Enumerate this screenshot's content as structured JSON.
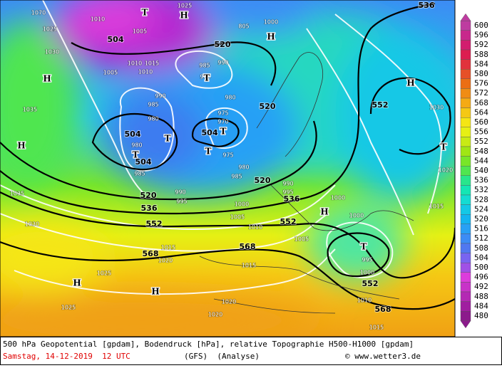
{
  "map": {
    "geopotential_labels": [
      "504",
      "520",
      "504",
      "504",
      "504",
      "520",
      "552",
      "520",
      "536",
      "552",
      "520",
      "536",
      "552",
      "568",
      "568",
      "552",
      "568",
      "536"
    ],
    "pressure_labels": [
      "1070",
      "1010",
      "1025",
      "1005",
      "1025",
      "1030",
      "805",
      "1000",
      "1010",
      "1015",
      "1005",
      "1010",
      "985",
      "990",
      "985",
      "990",
      "985",
      "980",
      "980",
      "975",
      "970",
      "975",
      "1035",
      "980",
      "985",
      "980",
      "985",
      "990",
      "995",
      "1000",
      "1005",
      "1010",
      "990",
      "995",
      "1030",
      "1020",
      "1015",
      "1000",
      "1000",
      "1035",
      "1030",
      "1015",
      "1020",
      "1005",
      "995",
      "1000",
      "1010",
      "1015",
      "1020",
      "1020",
      "1025",
      "1025",
      "1015"
    ],
    "pressure_centers": [
      "T",
      "H",
      "H",
      "H",
      "T",
      "H",
      "T",
      "T",
      "T",
      "H",
      "T",
      "T",
      "H",
      "T",
      "H",
      "H"
    ]
  },
  "colorbar": {
    "labels": [
      600,
      596,
      592,
      588,
      584,
      580,
      576,
      572,
      568,
      564,
      560,
      556,
      552,
      548,
      544,
      540,
      536,
      532,
      528,
      524,
      520,
      516,
      512,
      508,
      504,
      500,
      496,
      492,
      488,
      484,
      480
    ],
    "colors": [
      "#be3ca0",
      "#c8288c",
      "#d21e6e",
      "#dc1e50",
      "#e1323c",
      "#e65028",
      "#eb6e14",
      "#f08c14",
      "#f5aa14",
      "#f5c814",
      "#f5e614",
      "#e6f014",
      "#c8eb14",
      "#a0e614",
      "#78e628",
      "#50e650",
      "#28e68c",
      "#14e6b4",
      "#14dcd2",
      "#14c8e6",
      "#14b4f0",
      "#28a0f5",
      "#3c8cf5",
      "#5078f0",
      "#7864f0",
      "#a050e6",
      "#dc3cdc",
      "#c832c8",
      "#b428b4",
      "#a01ea0",
      "#8c1a8c"
    ]
  },
  "footer": {
    "description": "500 hPa Geopotential [gpdam], Bodendruck [hPa], relative Topographie H500-H1000 [gpdam]",
    "date": "Samstag, 14-12-2019  12 UTC",
    "model": "(GFS)  (Analyse)",
    "credit": "© www.wetter3.de"
  }
}
